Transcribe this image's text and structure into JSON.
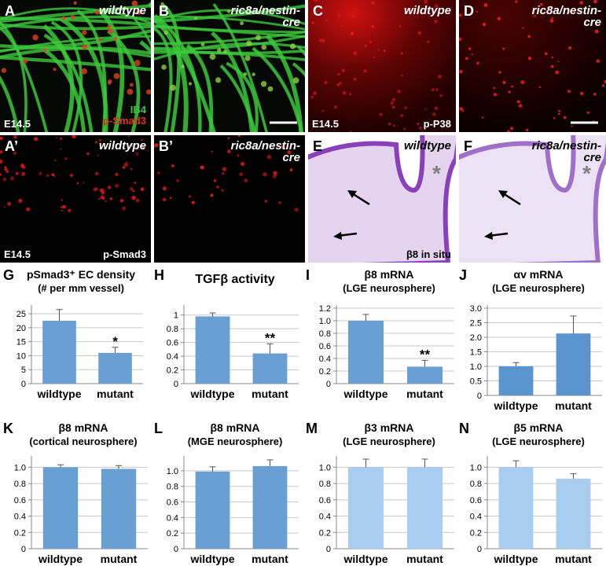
{
  "panels": [
    {
      "letter": "A",
      "genotype": [
        "wildtype"
      ],
      "stain": [
        "IB4",
        "p-Smad3"
      ],
      "stage": "E14.5"
    },
    {
      "letter": "B",
      "genotype": [
        "ric8a/nestin-",
        "cre"
      ]
    },
    {
      "letter": "C",
      "genotype": [
        "wildtype"
      ],
      "stage": "E14.5",
      "stain": [
        "p-P38"
      ]
    },
    {
      "letter": "D",
      "genotype": [
        "ric8a/nestin-",
        "cre"
      ]
    },
    {
      "letter": "A’",
      "genotype": [
        "wildtype"
      ],
      "stage": "E14.5",
      "stain": [
        "p-Smad3"
      ]
    },
    {
      "letter": "B’",
      "genotype": [
        "ric8a/nestin-",
        "cre"
      ]
    },
    {
      "letter": "E",
      "genotype": [
        "wildtype"
      ],
      "star": "*",
      "stain": [
        "β8 in situ"
      ]
    },
    {
      "letter": "F",
      "genotype": [
        "ric8a/nestin-",
        "cre"
      ],
      "star": "*"
    }
  ],
  "chart_data": [
    {
      "type": "bar",
      "label": "G",
      "title": "pSmad3⁺ EC density",
      "subtitle": "(# per mm vessel)",
      "categories": [
        "wildtype",
        "mutant"
      ],
      "values": [
        22.5,
        11
      ],
      "errors": [
        4,
        2
      ],
      "annotations": [
        null,
        "*"
      ],
      "color": "#6a9fd4",
      "ylim": [
        0,
        27
      ],
      "yticks": [
        0,
        5,
        10,
        15,
        20,
        25
      ],
      "grid": true
    },
    {
      "type": "bar",
      "label": "H",
      "title": "TGFβ activity",
      "categories": [
        "wildtype",
        "mutant"
      ],
      "values": [
        0.98,
        0.44
      ],
      "errors": [
        0.05,
        0.14
      ],
      "annotations": [
        null,
        "**"
      ],
      "color": "#6a9fd4",
      "ylim": [
        0,
        1.1
      ],
      "yticks": [
        0,
        0.2,
        0.4,
        0.6,
        0.8,
        1
      ],
      "grid": true
    },
    {
      "type": "bar",
      "label": "I",
      "title": "β8 mRNA",
      "subtitle": "(LGE neurosphere)",
      "categories": [
        "wildtype",
        "mutant"
      ],
      "values": [
        1.0,
        0.27
      ],
      "errors": [
        0.1,
        0.1
      ],
      "annotations": [
        null,
        "**"
      ],
      "color": "#6a9fd4",
      "ylim": [
        0,
        1.2
      ],
      "yticks": [
        0,
        0.2,
        0.4,
        0.6,
        0.8,
        {
          "value": 1,
          "label": "1.0"
        },
        1.2
      ],
      "grid": true
    },
    {
      "type": "bar",
      "label": "J",
      "title": "αv mRNA",
      "subtitle": "(LGE neurosphere)",
      "categories": [
        "wildtype",
        "mutant"
      ],
      "values": [
        1.0,
        2.13
      ],
      "errors": [
        0.13,
        0.6
      ],
      "color": "#5b95d0",
      "ylim": [
        0,
        3
      ],
      "yticks": [
        0,
        0.5,
        {
          "value": 1,
          "label": "1.0"
        },
        1.5,
        {
          "value": 2,
          "label": "2.0"
        },
        2.5,
        {
          "value": 3,
          "label": "3.0"
        }
      ],
      "grid": true
    },
    {
      "type": "bar",
      "label": "K",
      "title": "β8 mRNA",
      "subtitle": "(cortical neurosphere)",
      "categories": [
        "wildtype",
        "mutant"
      ],
      "values": [
        1.0,
        0.98
      ],
      "errors": [
        0.03,
        0.04
      ],
      "color": "#6a9fd4",
      "ylim": [
        0,
        1.1
      ],
      "yticks": [
        0,
        0.2,
        0.4,
        0.6,
        0.8,
        {
          "value": 1,
          "label": "1.0"
        }
      ],
      "grid": true
    },
    {
      "type": "bar",
      "label": "L",
      "title": "β8 mRNA",
      "subtitle": "(MGE neurosphere)",
      "categories": [
        "wildtype",
        "mutant"
      ],
      "values": [
        0.99,
        1.06
      ],
      "errors": [
        0.06,
        0.08
      ],
      "color": "#6a9fd4",
      "ylim": [
        0,
        1.15
      ],
      "yticks": [
        0,
        0.2,
        0.4,
        0.6,
        0.8,
        {
          "value": 1,
          "label": "1.0"
        }
      ],
      "grid": true
    },
    {
      "type": "bar",
      "label": "M",
      "title": "β3 mRNA",
      "subtitle": "(LGE neurosphere)",
      "categories": [
        "wildtype",
        "mutant"
      ],
      "values": [
        1.0,
        1.0
      ],
      "errors": [
        0.1,
        0.1
      ],
      "color": "#a9cdf0",
      "ylim": [
        0,
        1.1
      ],
      "yticks": [
        0,
        0.2,
        0.4,
        0.6,
        0.8,
        {
          "value": 1,
          "label": "1.0"
        }
      ],
      "grid": true
    },
    {
      "type": "bar",
      "label": "N",
      "title": "β5 mRNA",
      "subtitle": "(LGE neurosphere)",
      "categories": [
        "wildtype",
        "mutant"
      ],
      "values": [
        1.0,
        0.86
      ],
      "errors": [
        0.08,
        0.06
      ],
      "color": "#a9cdf0",
      "ylim": [
        0,
        1.1
      ],
      "yticks": [
        0,
        0.2,
        0.4,
        0.6,
        0.8,
        {
          "value": 1,
          "label": "1.0"
        }
      ],
      "grid": true
    }
  ]
}
